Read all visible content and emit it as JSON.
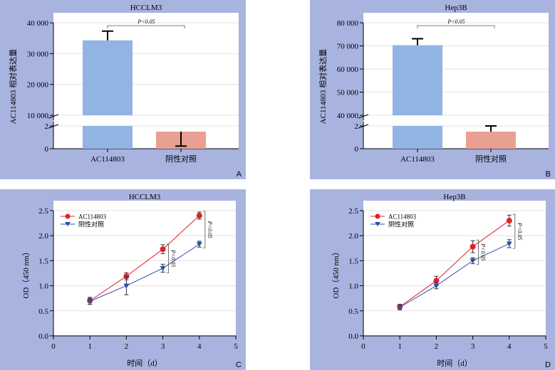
{
  "panels": [
    {
      "letter": "A",
      "chart_data": {
        "type": "bar",
        "title": "HCCLM3",
        "ylabel": "AC114803 相对表达量",
        "xlabel": "",
        "categories": [
          "AC114803",
          "阴性对照"
        ],
        "values": [
          34300,
          1.5
        ],
        "errors": [
          3000,
          0.6
        ],
        "colors": [
          "#92b4e3",
          "#e8a093"
        ],
        "y_axis_break": true,
        "ylim_lower": [
          0,
          2
        ],
        "ylim_upper": [
          10000,
          40000
        ],
        "yticks_lower": [
          "0",
          "2"
        ],
        "yticks_upper": [
          "10 000",
          "20 000",
          "30 000",
          "40 000"
        ],
        "annotation": "P<0.05"
      }
    },
    {
      "letter": "B",
      "chart_data": {
        "type": "bar",
        "title": "Hep3B",
        "ylabel": "AC114803 相对表达量",
        "xlabel": "",
        "categories": [
          "AC114803",
          "阴性对照"
        ],
        "values": [
          70300,
          1.5
        ],
        "errors": [
          2800,
          0.5
        ],
        "colors": [
          "#92b4e3",
          "#e8a093"
        ],
        "y_axis_break": true,
        "ylim_lower": [
          0,
          2
        ],
        "ylim_upper": [
          40000,
          80000
        ],
        "yticks_lower": [
          "0",
          "2"
        ],
        "yticks_upper": [
          "40 000",
          "50 000",
          "60 000",
          "70 000",
          "80 000"
        ],
        "annotation": "P<0.05"
      }
    },
    {
      "letter": "C",
      "chart_data": {
        "type": "line",
        "title": "HCCLM3",
        "xlabel": "时间（d）",
        "ylabel": "OD（450 nm）",
        "xlim": [
          0,
          5
        ],
        "ylim": [
          0,
          2.5
        ],
        "xticks": [
          "0",
          "1",
          "2",
          "3",
          "4",
          "5"
        ],
        "yticks": [
          "0.0",
          "0.5",
          "1.0",
          "1.5",
          "2.0",
          "2.5"
        ],
        "x": [
          1,
          2,
          3,
          4
        ],
        "series": [
          {
            "name": "AC114803",
            "values": [
              0.7,
              1.19,
              1.73,
              2.4
            ],
            "errors": [
              0.07,
              0.07,
              0.09,
              0.07
            ],
            "color": "#e0202a",
            "marker": "circle"
          },
          {
            "name": "阴性对照",
            "values": [
              0.69,
              1.0,
              1.35,
              1.83
            ],
            "errors": [
              0.06,
              0.18,
              0.08,
              0.06
            ],
            "color": "#2b4fa8",
            "marker": "triangle-down"
          }
        ],
        "legend_position": "top-left",
        "annotations": [
          {
            "x": 3,
            "text": "P<0.05"
          },
          {
            "x": 4,
            "text": "P<0.05"
          }
        ]
      }
    },
    {
      "letter": "D",
      "chart_data": {
        "type": "line",
        "title": "Hep3B",
        "xlabel": "时间（d）",
        "ylabel": "OD（450 nm）",
        "xlim": [
          0,
          5
        ],
        "ylim": [
          0,
          2.5
        ],
        "xticks": [
          "0",
          "1",
          "2",
          "3",
          "4",
          "5"
        ],
        "yticks": [
          "0.0",
          "0.5",
          "1.0",
          "1.5",
          "2.0",
          "2.5"
        ],
        "x": [
          1,
          2,
          3,
          4
        ],
        "series": [
          {
            "name": "AC114803",
            "values": [
              0.58,
              1.1,
              1.78,
              2.3
            ],
            "errors": [
              0.05,
              0.09,
              0.12,
              0.11
            ],
            "color": "#e0202a",
            "marker": "circle"
          },
          {
            "name": "阴性对照",
            "values": [
              0.57,
              1.0,
              1.5,
              1.84
            ],
            "errors": [
              0.05,
              0.06,
              0.06,
              0.08
            ],
            "color": "#2b4fa8",
            "marker": "triangle-down"
          }
        ],
        "legend_position": "top-left",
        "annotations": [
          {
            "x": 3,
            "text": "P<0.05"
          },
          {
            "x": 4,
            "text": "P<0.05"
          }
        ]
      }
    }
  ]
}
